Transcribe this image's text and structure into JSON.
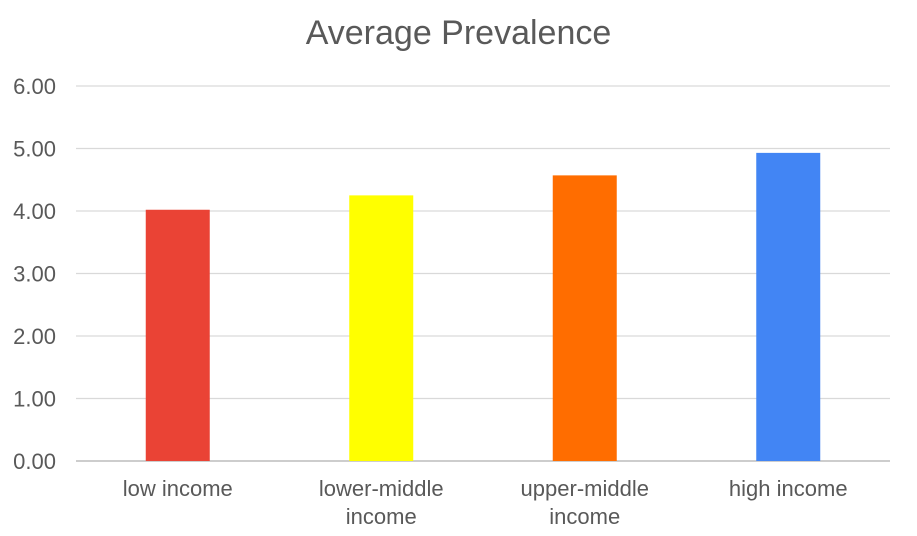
{
  "chart_data": {
    "type": "bar",
    "title": "Average Prevalence",
    "categories": [
      [
        "low income"
      ],
      [
        "lower-middle",
        "income"
      ],
      [
        "upper-middle",
        "income"
      ],
      [
        "high income"
      ]
    ],
    "category_labels": [
      "low income",
      "lower-middle income",
      "upper-middle income",
      "high income"
    ],
    "values": [
      4.02,
      4.25,
      4.57,
      4.93
    ],
    "colors": [
      "#ea4335",
      "#ffff00",
      "#ff6d00",
      "#4285f4"
    ],
    "ylim": [
      0,
      6
    ],
    "yticks": [
      "0.00",
      "1.00",
      "2.00",
      "3.00",
      "4.00",
      "5.00",
      "6.00"
    ],
    "grid": true,
    "gridColor": "#d9d9d9",
    "legend": "none"
  }
}
